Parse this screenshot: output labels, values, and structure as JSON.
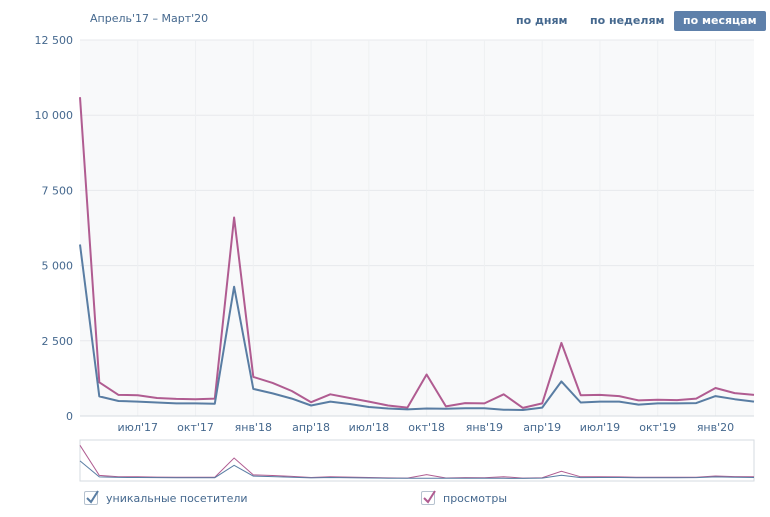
{
  "header": {
    "period": "Апрель'17 – Март'20",
    "tabs": [
      {
        "label": "по дням",
        "active": false
      },
      {
        "label": "по неделям",
        "active": false
      },
      {
        "label": "по месяцам",
        "active": true
      }
    ]
  },
  "chart_data": {
    "type": "line",
    "ylim": [
      0,
      12500
    ],
    "yticks": [
      0,
      2500,
      5000,
      7500,
      10000,
      12500
    ],
    "ytick_labels": [
      "0",
      "2 500",
      "5 000",
      "7 500",
      "10 000",
      "12 500"
    ],
    "x_tick_labels": [
      {
        "index": 3,
        "label": "июл'17"
      },
      {
        "index": 6,
        "label": "окт'17"
      },
      {
        "index": 9,
        "label": "янв'18"
      },
      {
        "index": 12,
        "label": "апр'18"
      },
      {
        "index": 15,
        "label": "июл'18"
      },
      {
        "index": 18,
        "label": "окт'18"
      },
      {
        "index": 21,
        "label": "янв'19"
      },
      {
        "index": 24,
        "label": "апр'19"
      },
      {
        "index": 27,
        "label": "июл'19"
      },
      {
        "index": 30,
        "label": "окт'19"
      },
      {
        "index": 33,
        "label": "янв'20"
      }
    ],
    "grid": true,
    "series": [
      {
        "name": "уникальные посетители",
        "color": "#597da3",
        "values": [
          5700,
          650,
          500,
          480,
          450,
          420,
          420,
          410,
          4300,
          900,
          750,
          580,
          350,
          480,
          400,
          300,
          250,
          220,
          250,
          240,
          260,
          260,
          210,
          200,
          280,
          1150,
          450,
          480,
          480,
          380,
          420,
          420,
          430,
          660,
          560,
          480
        ]
      },
      {
        "name": "просмотры",
        "color": "#b05c91",
        "values": [
          10600,
          1120,
          700,
          690,
          600,
          570,
          560,
          580,
          6600,
          1300,
          1100,
          830,
          460,
          720,
          600,
          480,
          350,
          280,
          1380,
          320,
          430,
          420,
          720,
          270,
          420,
          2430,
          690,
          700,
          660,
          520,
          540,
          530,
          580,
          930,
          760,
          700
        ]
      }
    ]
  },
  "legend": {
    "items": [
      {
        "label": "уникальные посетители",
        "color": "#597da3"
      },
      {
        "label": "просмотры",
        "color": "#b05c91"
      }
    ]
  }
}
